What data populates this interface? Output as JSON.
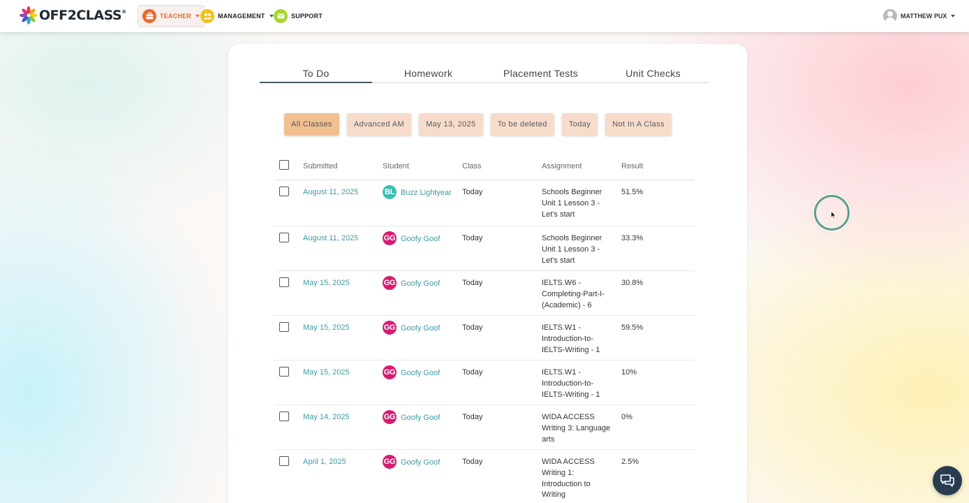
{
  "brand": {
    "logo_text": "OFF2CLASS",
    "trademark": "®"
  },
  "nav": {
    "teacher": {
      "label": "TEACHER",
      "icon": "briefcase-icon",
      "color": "#e86b2c"
    },
    "management": {
      "label": "MANAGEMENT",
      "icon": "people-icon",
      "color": "#f2c21b"
    },
    "support": {
      "label": "SUPPORT",
      "icon": "envelope-icon",
      "color": "#a5d62a"
    }
  },
  "user": {
    "name": "MATTHEW PUX",
    "icon": "user-avatar-icon"
  },
  "tabs": [
    {
      "label": "To Do",
      "active": true
    },
    {
      "label": "Homework",
      "active": false
    },
    {
      "label": "Placement Tests",
      "active": false
    },
    {
      "label": "Unit Checks",
      "active": false
    }
  ],
  "filters": [
    {
      "label": "All Classes",
      "active": true
    },
    {
      "label": "Advanced AM",
      "active": false
    },
    {
      "label": "May 13, 2025",
      "active": false
    },
    {
      "label": "To be deleted",
      "active": false
    },
    {
      "label": "Today",
      "active": false
    },
    {
      "label": "Not In A Class",
      "active": false
    }
  ],
  "table": {
    "headers": {
      "submitted": "Submitted",
      "student": "Student",
      "class": "Class",
      "assignment": "Assignment",
      "result": "Result"
    },
    "rows": [
      {
        "submitted": "August 11, 2025",
        "initials": "BL",
        "avatar_color": "#3bbfb2",
        "student": "Buzz Lightyear",
        "class": "Today",
        "assignment": "Schools Beginner Unit 1 Lesson 3 - Let's start",
        "result": "51.5%"
      },
      {
        "submitted": "August 11, 2025",
        "initials": "GG",
        "avatar_color": "#d81b72",
        "student": "Goofy Goof",
        "class": "Today",
        "assignment": "Schools Beginner Unit 1 Lesson 3 - Let's start",
        "result": "33.3%"
      },
      {
        "submitted": "May 15, 2025",
        "initials": "GG",
        "avatar_color": "#d81b72",
        "student": "Goofy Goof",
        "class": "Today",
        "assignment": "IELTS.W6 - Completing-Part-I-(Academic) - 6",
        "result": "30.8%"
      },
      {
        "submitted": "May 15, 2025",
        "initials": "GG",
        "avatar_color": "#d81b72",
        "student": "Goofy Goof",
        "class": "Today",
        "assignment": "IELTS.W1 - Introduction-to-IELTS-Writing - 1",
        "result": "59.5%"
      },
      {
        "submitted": "May 15, 2025",
        "initials": "GG",
        "avatar_color": "#d81b72",
        "student": "Goofy Goof",
        "class": "Today",
        "assignment": "IELTS.W1 - Introduction-to-IELTS-Writing - 1",
        "result": "10%"
      },
      {
        "submitted": "May 14, 2025",
        "initials": "GG",
        "avatar_color": "#d81b72",
        "student": "Goofy Goof",
        "class": "Today",
        "assignment": "WIDA ACCESS Writing 3: Language arts",
        "result": "0%"
      },
      {
        "submitted": "April 1, 2025",
        "initials": "GG",
        "avatar_color": "#d81b72",
        "student": "Goofy Goof",
        "class": "Today",
        "assignment": "WIDA ACCESS Writing 1: Introduction to Writing",
        "result": "2.5%"
      }
    ]
  },
  "colors": {
    "accent_teal": "#3d9aa6",
    "chip_bg": "#f7dccb",
    "chip_active_bg": "#f2bf8f",
    "chat_bg": "#283c52"
  },
  "chat": {
    "icon": "chat-bubble-icon"
  }
}
